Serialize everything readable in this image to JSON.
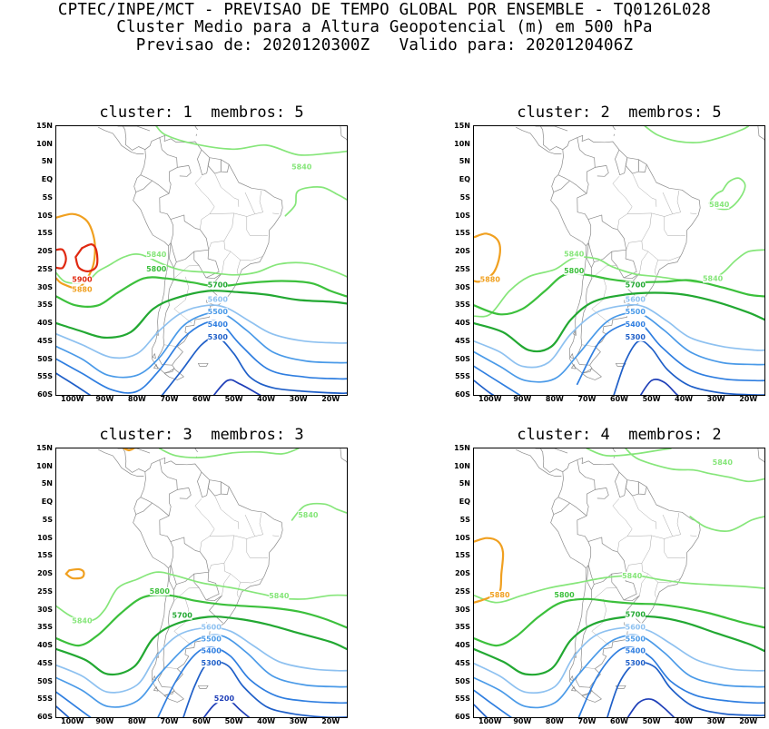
{
  "header": {
    "line1": "CPTEC/INPE/MCT - PREVISAO DE TEMPO GLOBAL POR ENSEMBLE - TQ0126L028",
    "line2": "Cluster Medio para a Altura Geopotencial (m) em 500 hPa",
    "line3": "Previsao de: 2020120300Z   Valido para: 2020120406Z"
  },
  "axes": {
    "lat_labels": [
      "15N",
      "10N",
      "5N",
      "EQ",
      "5S",
      "10S",
      "15S",
      "20S",
      "25S",
      "30S",
      "35S",
      "40S",
      "45S",
      "50S",
      "55S",
      "60S"
    ],
    "lon_labels": [
      "100W",
      "90W",
      "80W",
      "70W",
      "60W",
      "50W",
      "40W",
      "30W",
      "20W"
    ]
  },
  "colors": {
    "c5200": "#1f3fb8",
    "c5300": "#1f5fc8",
    "c5400": "#2f7ee0",
    "c5500": "#4a9ae8",
    "c5600": "#8ec1f0",
    "c5700": "#22a832",
    "c5800": "#3cc03c",
    "c5840": "#86e67a",
    "c5880": "#f0a020",
    "c5900": "#e02810"
  },
  "panels": [
    {
      "title": "cluster: 1  membros: 5",
      "labels": [
        {
          "text": "5840",
          "c": "c5840"
        },
        {
          "text": "5840",
          "c": "c5840"
        },
        {
          "text": "5800",
          "c": "c5800"
        },
        {
          "text": "5900",
          "c": "c5900"
        },
        {
          "text": "5880",
          "c": "c5880"
        },
        {
          "text": "5700",
          "c": "c5700"
        },
        {
          "text": "5600",
          "c": "c5600"
        },
        {
          "text": "5500",
          "c": "c5500"
        },
        {
          "text": "5400",
          "c": "c5400"
        },
        {
          "text": "5300",
          "c": "c5300"
        }
      ]
    },
    {
      "title": "cluster: 2  membros: 5",
      "labels": [
        {
          "text": "5840",
          "c": "c5840"
        },
        {
          "text": "5840",
          "c": "c5840"
        },
        {
          "text": "5840",
          "c": "c5840"
        },
        {
          "text": "5800",
          "c": "c5800"
        },
        {
          "text": "5880",
          "c": "c5880"
        },
        {
          "text": "5700",
          "c": "c5700"
        },
        {
          "text": "5600",
          "c": "c5600"
        },
        {
          "text": "5500",
          "c": "c5500"
        },
        {
          "text": "5400",
          "c": "c5400"
        },
        {
          "text": "5300",
          "c": "c5300"
        }
      ]
    },
    {
      "title": "cluster: 3  membros: 3",
      "labels": [
        {
          "text": "5840",
          "c": "c5840"
        },
        {
          "text": "5840",
          "c": "c5840"
        },
        {
          "text": "5840",
          "c": "c5840"
        },
        {
          "text": "5800",
          "c": "c5800"
        },
        {
          "text": "5700",
          "c": "c5700"
        },
        {
          "text": "5600",
          "c": "c5600"
        },
        {
          "text": "5500",
          "c": "c5500"
        },
        {
          "text": "5400",
          "c": "c5400"
        },
        {
          "text": "5300",
          "c": "c5300"
        },
        {
          "text": "5200",
          "c": "c5200"
        }
      ]
    },
    {
      "title": "cluster: 4  membros: 2",
      "labels": [
        {
          "text": "5840",
          "c": "c5840"
        },
        {
          "text": "5840",
          "c": "c5840"
        },
        {
          "text": "5800",
          "c": "c5800"
        },
        {
          "text": "5880",
          "c": "c5880"
        },
        {
          "text": "5700",
          "c": "c5700"
        },
        {
          "text": "5600",
          "c": "c5600"
        },
        {
          "text": "5500",
          "c": "c5500"
        },
        {
          "text": "5400",
          "c": "c5400"
        },
        {
          "text": "5300",
          "c": "c5300"
        }
      ]
    }
  ]
}
